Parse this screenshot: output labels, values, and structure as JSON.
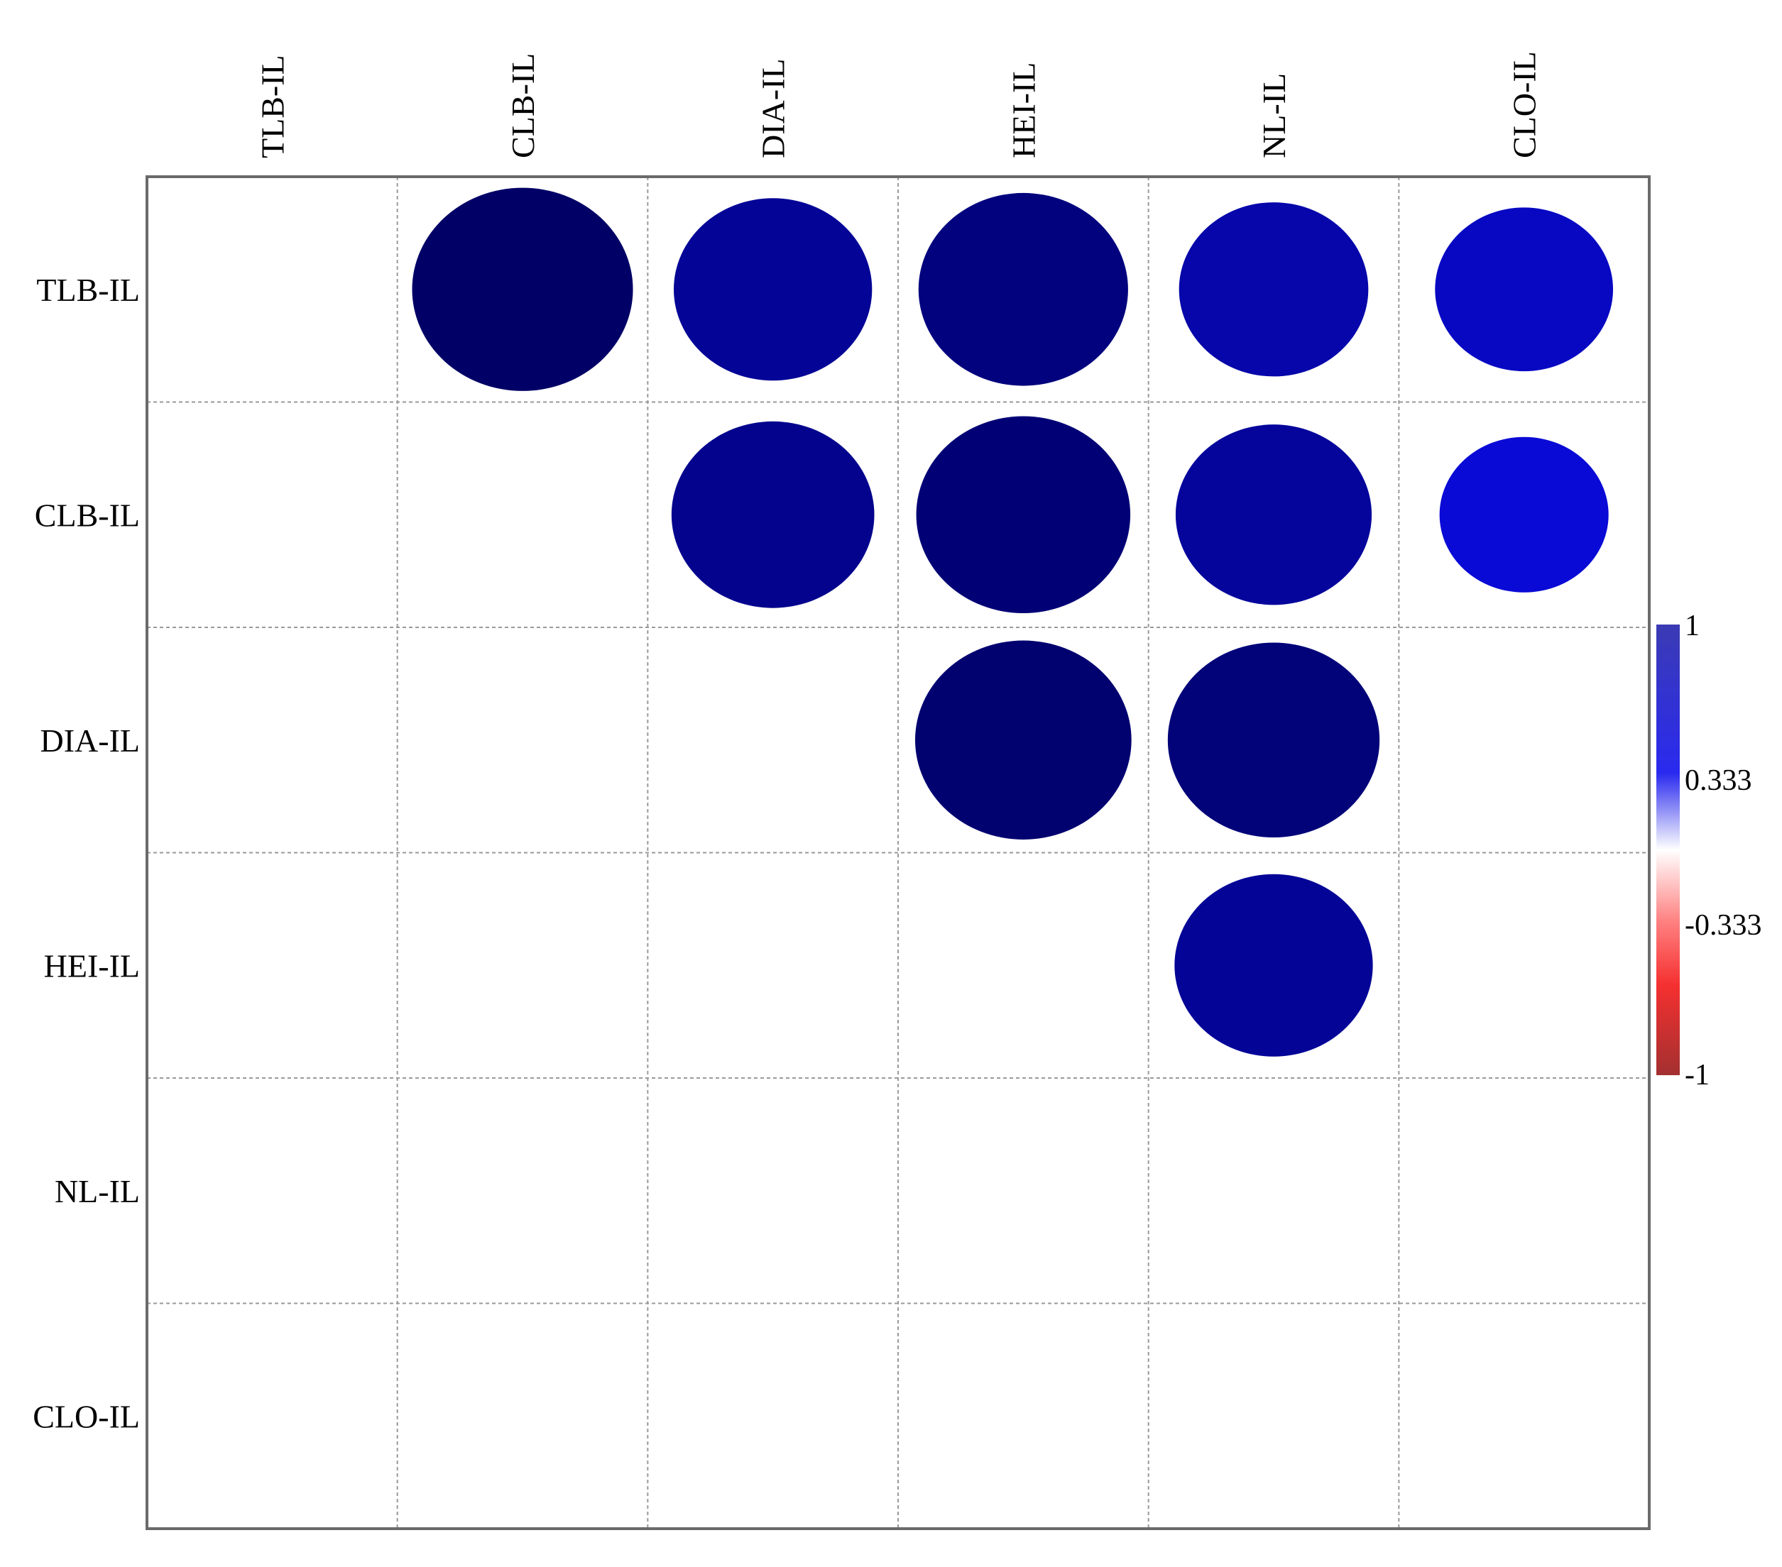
{
  "chart_data": {
    "type": "heatmap",
    "variables": [
      "TLB-IL",
      "CLB-IL",
      "DIA-IL",
      "HEI-IL",
      "NL-IL",
      "CLO-IL"
    ],
    "matrix": [
      [
        null,
        0.98,
        0.88,
        0.93,
        0.84,
        0.79
      ],
      [
        null,
        null,
        0.9,
        0.95,
        0.87,
        0.75
      ],
      [
        null,
        null,
        null,
        0.96,
        0.94,
        null
      ],
      [
        null,
        null,
        null,
        null,
        0.88,
        null
      ],
      [
        null,
        null,
        null,
        null,
        null,
        null
      ],
      [
        null,
        null,
        null,
        null,
        null,
        null
      ]
    ],
    "colorbar": {
      "min": -1,
      "max": 1,
      "ticks": [
        "1",
        "0.333",
        "-0.333",
        "-1"
      ],
      "colors": [
        "#3b3bb4",
        "#2a2aef",
        "#ffffff",
        "#f53030",
        "#a33030"
      ]
    },
    "grid": true,
    "colors": {
      "circle_dark": "#000066",
      "circle_light": "#0a0ad6",
      "grid_line": "#9a9a9a",
      "frame": "#6a6a6a"
    }
  }
}
